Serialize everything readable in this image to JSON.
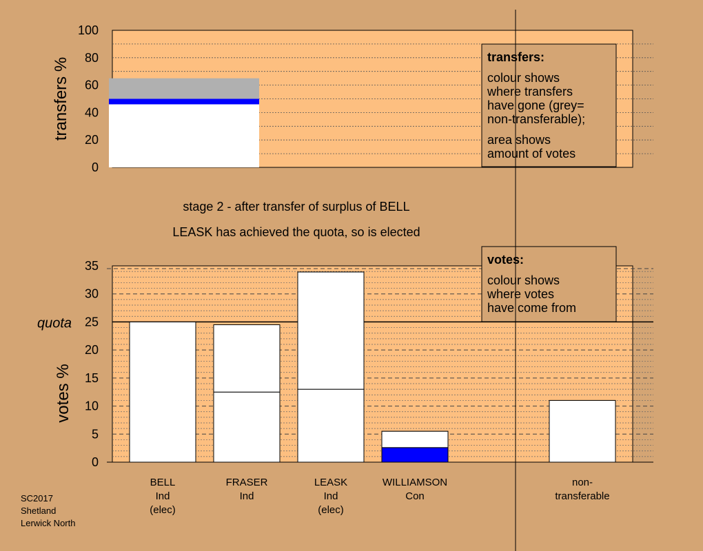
{
  "colors": {
    "background": "#d4a574",
    "plot_fill": "#fdbf80",
    "bell_transfer": "#0000ff",
    "nontransferable": "#b0b0b0",
    "bar_fill": "#ffffff"
  },
  "stage_text": "stage 2 - after transfer of surplus of BELL",
  "elected_text": "LEASK has achieved the quota, so is elected",
  "footer": [
    "SC2017",
    "Shetland",
    "Lerwick North"
  ],
  "transfers_box": {
    "title": "transfers:",
    "lines": [
      "colour shows",
      "where transfers",
      "have gone (grey=",
      "non-transferable);"
    ],
    "lines2": [
      "area shows",
      "amount of votes"
    ]
  },
  "votes_box": {
    "title": "votes:",
    "lines": [
      "colour shows",
      "where votes",
      "have come from"
    ]
  },
  "chart_data": [
    {
      "type": "bar",
      "ylabel": "transfers %",
      "ylim": [
        0,
        100
      ],
      "yticks": [
        0,
        20,
        40,
        60,
        80,
        100
      ],
      "stack": [
        {
          "from": 0,
          "to": 46,
          "color": "#ffffff"
        },
        {
          "from": 46,
          "to": 50,
          "color": "#0000ff"
        },
        {
          "from": 50,
          "to": 65,
          "color": "#b0b0b0"
        }
      ]
    },
    {
      "type": "bar",
      "ylabel": "votes %",
      "ylim": [
        0,
        35
      ],
      "yticks": [
        0,
        5,
        10,
        15,
        20,
        25,
        30,
        35
      ],
      "quota": 25,
      "quota_label": "quota",
      "categories": [
        {
          "lines": [
            "BELL",
            "Ind",
            "(elec)"
          ],
          "total": 25,
          "segments": [
            {
              "from": 0,
              "to": 25,
              "color": "#ffffff"
            }
          ]
        },
        {
          "lines": [
            "FRASER",
            "Ind"
          ],
          "total": 24.5,
          "segments": [
            {
              "from": 0,
              "to": 12.5,
              "color": "#ffffff"
            },
            {
              "from": 12.5,
              "to": 24.5,
              "color": "#ffffff"
            }
          ]
        },
        {
          "lines": [
            "LEASK",
            "Ind",
            "(elec)"
          ],
          "total": 33.9,
          "segments": [
            {
              "from": 0,
              "to": 13.0,
              "color": "#ffffff"
            },
            {
              "from": 13.0,
              "to": 33.9,
              "color": "#ffffff"
            }
          ]
        },
        {
          "lines": [
            "WILLIAMSON",
            "Con"
          ],
          "total": 5.5,
          "segments": [
            {
              "from": 0,
              "to": 2.6,
              "color": "#0000ff"
            },
            {
              "from": 2.6,
              "to": 5.5,
              "color": "#ffffff"
            }
          ]
        },
        {
          "lines": [
            "non-",
            "transferable"
          ],
          "total": 11.0,
          "segments": [
            {
              "from": 0,
              "to": 11.0,
              "color": "#ffffff"
            }
          ]
        }
      ]
    }
  ]
}
